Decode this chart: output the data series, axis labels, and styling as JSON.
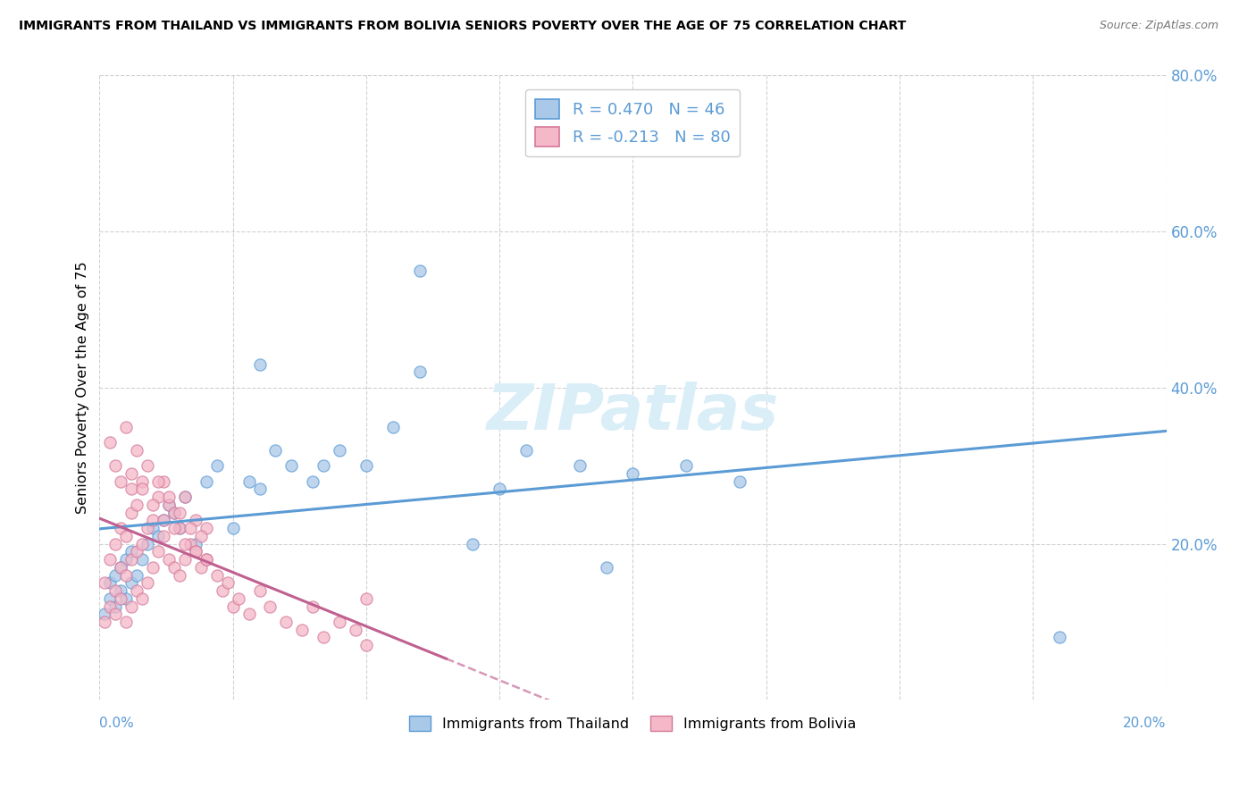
{
  "title": "IMMIGRANTS FROM THAILAND VS IMMIGRANTS FROM BOLIVIA SENIORS POVERTY OVER THE AGE OF 75 CORRELATION CHART",
  "source": "Source: ZipAtlas.com",
  "ylabel": "Seniors Poverty Over the Age of 75",
  "xlim": [
    0.0,
    0.2
  ],
  "ylim": [
    0.0,
    0.8
  ],
  "color_thailand_fill": "#aac8e8",
  "color_thailand_edge": "#5b9bd5",
  "color_bolivia_fill": "#f4b8c8",
  "color_bolivia_edge": "#d4789a",
  "color_trend_thailand": "#5b9bd5",
  "color_trend_bolivia": "#c06090",
  "R_thailand": 0.47,
  "N_thailand": 46,
  "R_bolivia": -0.213,
  "N_bolivia": 80,
  "watermark": "ZIPatlas",
  "watermark_color": "#daeef8",
  "legend_label_thailand": "Immigrants from Thailand",
  "legend_label_bolivia": "Immigrants from Bolivia",
  "thailand_x": [
    0.001,
    0.002,
    0.002,
    0.003,
    0.003,
    0.004,
    0.004,
    0.005,
    0.005,
    0.006,
    0.006,
    0.007,
    0.008,
    0.009,
    0.01,
    0.011,
    0.012,
    0.013,
    0.014,
    0.015,
    0.016,
    0.018,
    0.02,
    0.022,
    0.025,
    0.028,
    0.03,
    0.033,
    0.036,
    0.04,
    0.045,
    0.05,
    0.055,
    0.06,
    0.07,
    0.075,
    0.08,
    0.09,
    0.095,
    0.1,
    0.11,
    0.12,
    0.06,
    0.03,
    0.042,
    0.18
  ],
  "thailand_y": [
    0.11,
    0.13,
    0.15,
    0.12,
    0.16,
    0.14,
    0.17,
    0.13,
    0.18,
    0.15,
    0.19,
    0.16,
    0.18,
    0.2,
    0.22,
    0.21,
    0.23,
    0.25,
    0.24,
    0.22,
    0.26,
    0.2,
    0.28,
    0.3,
    0.22,
    0.28,
    0.27,
    0.32,
    0.3,
    0.28,
    0.32,
    0.3,
    0.35,
    0.42,
    0.2,
    0.27,
    0.32,
    0.3,
    0.17,
    0.29,
    0.3,
    0.28,
    0.55,
    0.43,
    0.3,
    0.08
  ],
  "bolivia_x": [
    0.001,
    0.001,
    0.002,
    0.002,
    0.003,
    0.003,
    0.003,
    0.004,
    0.004,
    0.004,
    0.005,
    0.005,
    0.005,
    0.006,
    0.006,
    0.006,
    0.006,
    0.007,
    0.007,
    0.007,
    0.008,
    0.008,
    0.008,
    0.009,
    0.009,
    0.01,
    0.01,
    0.011,
    0.011,
    0.012,
    0.012,
    0.013,
    0.013,
    0.014,
    0.014,
    0.015,
    0.015,
    0.016,
    0.016,
    0.017,
    0.018,
    0.018,
    0.019,
    0.02,
    0.02,
    0.022,
    0.023,
    0.024,
    0.025,
    0.026,
    0.028,
    0.03,
    0.032,
    0.035,
    0.038,
    0.04,
    0.042,
    0.045,
    0.048,
    0.05,
    0.002,
    0.003,
    0.004,
    0.005,
    0.006,
    0.007,
    0.008,
    0.009,
    0.01,
    0.011,
    0.012,
    0.013,
    0.014,
    0.015,
    0.016,
    0.017,
    0.018,
    0.019,
    0.02,
    0.05
  ],
  "bolivia_y": [
    0.1,
    0.15,
    0.12,
    0.18,
    0.11,
    0.14,
    0.2,
    0.13,
    0.17,
    0.22,
    0.1,
    0.16,
    0.21,
    0.12,
    0.18,
    0.24,
    0.27,
    0.14,
    0.19,
    0.25,
    0.13,
    0.2,
    0.28,
    0.15,
    0.22,
    0.17,
    0.23,
    0.19,
    0.26,
    0.21,
    0.28,
    0.18,
    0.25,
    0.17,
    0.24,
    0.16,
    0.22,
    0.18,
    0.26,
    0.2,
    0.19,
    0.23,
    0.17,
    0.18,
    0.22,
    0.16,
    0.14,
    0.15,
    0.12,
    0.13,
    0.11,
    0.14,
    0.12,
    0.1,
    0.09,
    0.12,
    0.08,
    0.1,
    0.09,
    0.07,
    0.33,
    0.3,
    0.28,
    0.35,
    0.29,
    0.32,
    0.27,
    0.3,
    0.25,
    0.28,
    0.23,
    0.26,
    0.22,
    0.24,
    0.2,
    0.22,
    0.19,
    0.21,
    0.18,
    0.13
  ]
}
